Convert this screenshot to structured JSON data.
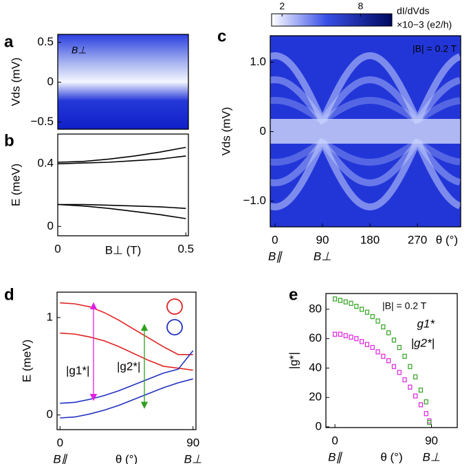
{
  "chart_data": [
    {
      "type": "heatmap",
      "panel": "a",
      "ylabel": "Vds (mV)",
      "ylim": [
        -0.59,
        0.6
      ],
      "yticks": [
        0.5,
        0,
        {
          "value": -0.5,
          "label": "−0.5"
        }
      ],
      "annotations": [
        {
          "text": "B⊥",
          "color": "#ffffff"
        }
      ]
    },
    {
      "type": "line",
      "panel": "b",
      "xlabel": "B⊥ (T)",
      "ylabel": "E (meV)",
      "x": [
        0,
        0.1,
        0.2,
        0.3,
        0.4,
        0.5
      ],
      "xlim": [
        0,
        0.51
      ],
      "xticks": [
        0,
        0.5
      ],
      "ylim": [
        -0.06,
        0.59
      ],
      "yticks": [
        0.4,
        0
      ],
      "series": [
        {
          "color": "#000000",
          "values": [
            0.41,
            0.415,
            0.43,
            0.45,
            0.475,
            0.505
          ]
        },
        {
          "color": "#000000",
          "values": [
            0.4,
            0.405,
            0.41,
            0.42,
            0.43,
            0.45
          ]
        },
        {
          "color": "#000000",
          "values": [
            0.14,
            0.14,
            0.135,
            0.13,
            0.125,
            0.115
          ]
        },
        {
          "color": "#000000",
          "values": [
            0.14,
            0.13,
            0.115,
            0.095,
            0.075,
            0.05
          ]
        }
      ]
    },
    {
      "type": "heatmap",
      "panel": "c",
      "xlabel": "θ (°)",
      "ylabel": "Vds (mV)",
      "xlim": [
        -9,
        352
      ],
      "xticks": [
        0,
        90,
        180,
        270
      ],
      "xtick_sublabels": [
        {
          "value": 0,
          "label": "B∥"
        },
        {
          "value": 90,
          "label": "B⊥"
        }
      ],
      "ylim": [
        -1.37,
        1.38
      ],
      "yticks": [
        {
          "value": 1,
          "label": "1.0"
        },
        0,
        {
          "value": -1,
          "label": "−1.0"
        }
      ],
      "annotations": [
        {
          "text": "|B| = 0.2 T",
          "color": "#ffffff"
        }
      ],
      "colorbar": {
        "lim": [
          1.2,
          10.4
        ],
        "ticks": [
          2,
          8
        ],
        "label": "dI/dVds",
        "unit": "×10−3 (e2/h)"
      }
    },
    {
      "type": "line",
      "panel": "d",
      "xlabel": "θ (°)",
      "ylabel": "E (meV)",
      "x": [
        0,
        10,
        20,
        30,
        40,
        50,
        60,
        70,
        80,
        90
      ],
      "xlim": [
        -2,
        92
      ],
      "xticks": [
        0,
        90
      ],
      "xtick_sublabels": [
        {
          "value": 0,
          "label": "B∥"
        },
        {
          "value": 90,
          "label": "B⊥"
        }
      ],
      "ylim": [
        -0.15,
        1.26
      ],
      "yticks": [
        1,
        0
      ],
      "annotations": [
        {
          "text": "|g1*|",
          "color": "#e020e0"
        },
        {
          "text": "|g2*|",
          "color": "#30a020"
        }
      ],
      "series": [
        {
          "color": "#e02020",
          "values": [
            1.15,
            1.14,
            1.11,
            1.05,
            0.97,
            0.88,
            0.79,
            0.7,
            0.62,
            0.62
          ]
        },
        {
          "color": "#e02020",
          "values": [
            0.84,
            0.83,
            0.8,
            0.76,
            0.7,
            0.63,
            0.56,
            0.5,
            0.48,
            0.46
          ]
        },
        {
          "color": "#2030c0",
          "values": [
            0.12,
            0.13,
            0.16,
            0.2,
            0.25,
            0.31,
            0.37,
            0.43,
            0.47,
            0.66
          ]
        },
        {
          "color": "#2030c0",
          "values": [
            -0.03,
            -0.02,
            0.01,
            0.05,
            0.1,
            0.16,
            0.22,
            0.28,
            0.33,
            0.37
          ]
        }
      ]
    },
    {
      "type": "scatter",
      "panel": "e",
      "xlabel": "θ (°)",
      "ylabel": "|g*|",
      "x": [
        0,
        5,
        10,
        15,
        20,
        25,
        30,
        35,
        40,
        45,
        50,
        55,
        60,
        65,
        70,
        75,
        80,
        85,
        88
      ],
      "xlim": [
        -8.4,
        114
      ],
      "xticks": [
        0,
        90
      ],
      "xtick_sublabels": [
        {
          "value": 0,
          "label": "B∥"
        },
        {
          "value": 90,
          "label": "B⊥"
        }
      ],
      "ylim": [
        -0.5,
        90.7
      ],
      "yticks": [
        0,
        20,
        40,
        60,
        80
      ],
      "annotations": [
        {
          "text": "|B| = 0.2 T",
          "color": "#000000"
        }
      ],
      "series": [
        {
          "name": "g1*",
          "color": "#e020e0",
          "values": [
            63,
            63,
            62,
            61,
            60,
            58,
            56,
            54,
            51,
            48,
            45,
            41,
            37,
            32,
            27,
            21,
            15,
            9,
            4
          ]
        },
        {
          "name": "|g2*|",
          "color": "#30a020",
          "values": [
            87,
            86,
            85,
            84,
            82,
            80,
            78,
            75,
            72,
            68,
            64,
            59,
            54,
            48,
            41,
            34,
            25,
            17,
            3
          ]
        }
      ]
    }
  ]
}
